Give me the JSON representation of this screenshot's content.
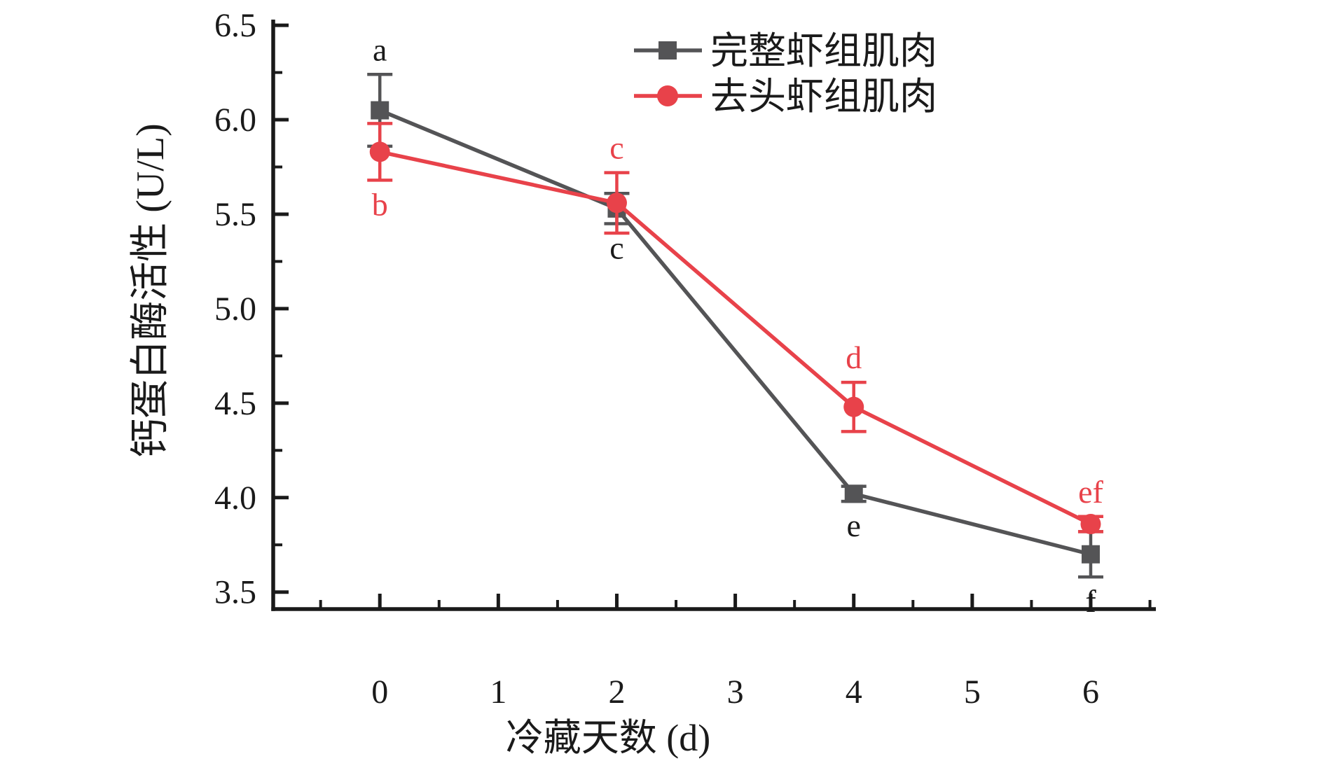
{
  "figure": {
    "background": "#ffffff",
    "text_color": "#1a1a1a"
  },
  "chart_data": {
    "type": "line",
    "title": "",
    "xlabel": "冷藏天数 (d)",
    "ylabel": "钙蛋白酶活性 (U/L)",
    "x": [
      0,
      2,
      4,
      6
    ],
    "xlim": [
      -0.9,
      6.55
    ],
    "ylim": [
      3.41,
      6.53
    ],
    "x_major_ticks": [
      0,
      1,
      2,
      3,
      4,
      5,
      6
    ],
    "x_tick_labels": [
      "0",
      "1",
      "2",
      "3",
      "4",
      "5",
      "6"
    ],
    "x_minor_ticks": [
      -0.5,
      0.5,
      1.5,
      2.5,
      3.5,
      4.5,
      5.5,
      6.5
    ],
    "y_major_ticks": [
      3.5,
      4.0,
      4.5,
      5.0,
      5.5,
      6.0,
      6.5
    ],
    "y_tick_labels": [
      "3.5",
      "4.0",
      "4.5",
      "5.0",
      "5.5",
      "6.0",
      "6.5"
    ],
    "y_minor_ticks": [
      3.75,
      4.25,
      4.75,
      5.25,
      5.75,
      6.25
    ],
    "grid": false,
    "legend_position": "top-right",
    "series": [
      {
        "name": "完整虾组肌肉",
        "color": "#545456",
        "label_color": "#1a1a1a",
        "marker": "square",
        "values": [
          6.05,
          5.53,
          4.02,
          3.7
        ],
        "errors": [
          0.19,
          0.08,
          0.04,
          0.12
        ],
        "point_labels": [
          "a",
          "c",
          "e",
          "f"
        ],
        "label_side": [
          "above",
          "below",
          "below",
          "below"
        ]
      },
      {
        "name": "去头虾组肌肉",
        "color": "#E8424A",
        "label_color": "#E8424A",
        "marker": "circle",
        "values": [
          5.83,
          5.56,
          4.48,
          3.86
        ],
        "errors": [
          0.15,
          0.16,
          0.13,
          0.04
        ],
        "point_labels": [
          "b",
          "c",
          "d",
          "ef"
        ],
        "label_side": [
          "below",
          "above",
          "above",
          "above"
        ]
      }
    ]
  }
}
